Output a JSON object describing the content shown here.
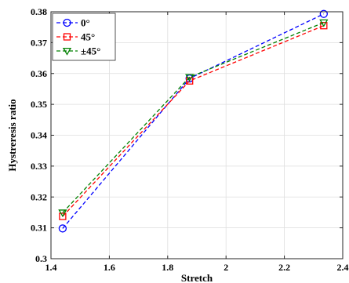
{
  "chart_data": {
    "type": "line",
    "xlabel": "Stretch",
    "ylabel": "Hystreresis ratio",
    "xlim": [
      1.4,
      2.4
    ],
    "ylim": [
      0.3,
      0.38
    ],
    "xticks": [
      "1.4",
      "1.6",
      "1.8",
      "2",
      "2.2",
      "2.4"
    ],
    "yticks": [
      "0.3",
      "0.31",
      "0.32",
      "0.33",
      "0.34",
      "0.35",
      "0.36",
      "0.37",
      "0.38"
    ],
    "grid": true,
    "legend_position": "top-left",
    "x": [
      1.44,
      1.875,
      2.335
    ],
    "series": [
      {
        "name": "0°",
        "values": [
          0.3098,
          0.3584,
          0.3793
        ],
        "color": "#0000ff",
        "marker": "circle"
      },
      {
        "name": "45°",
        "values": [
          0.3137,
          0.3576,
          0.3755
        ],
        "color": "#ff0000",
        "marker": "square"
      },
      {
        "name": "±45°",
        "values": [
          0.3149,
          0.3588,
          0.3765
        ],
        "color": "#008000",
        "marker": "triangle-down"
      }
    ]
  }
}
